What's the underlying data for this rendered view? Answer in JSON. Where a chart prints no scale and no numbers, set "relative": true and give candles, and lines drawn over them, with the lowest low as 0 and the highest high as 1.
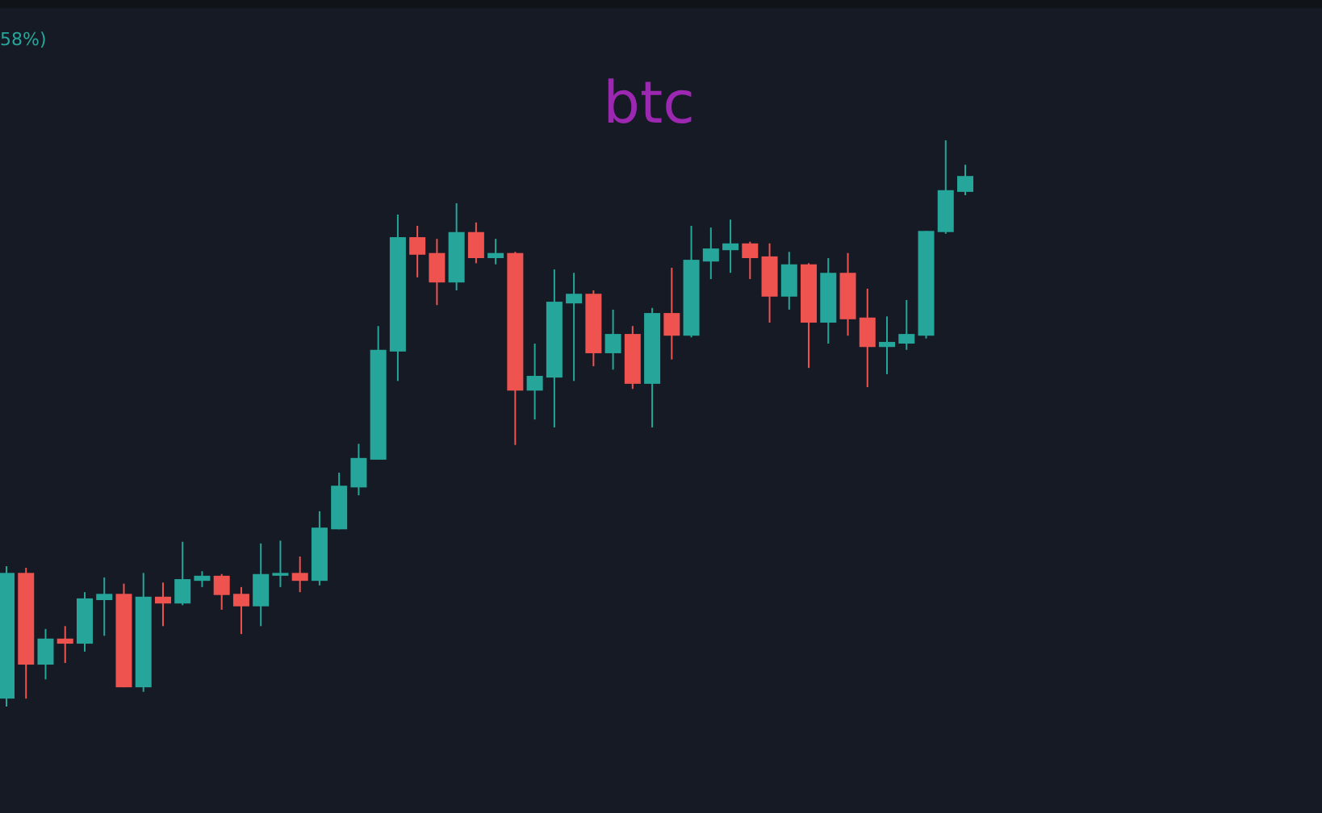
{
  "chart_data": {
    "type": "candlestick",
    "title": "btc",
    "annotations": [
      "58%)"
    ],
    "relative": true,
    "categories": [
      null,
      null,
      null,
      null,
      null,
      null,
      null,
      null,
      null,
      null,
      null,
      null,
      null,
      null,
      null,
      null,
      null,
      null,
      null,
      null,
      null,
      null,
      null,
      null,
      null,
      null,
      null,
      null,
      null,
      null,
      null,
      null,
      null,
      null,
      null,
      null,
      null,
      null,
      null,
      null,
      null,
      null,
      null,
      null,
      null,
      null,
      null,
      null,
      null,
      null
    ],
    "ohlc": [
      [
        0.014,
        0.248,
        0,
        0.236
      ],
      [
        0.236,
        0.245,
        0.014,
        0.074
      ],
      [
        0.074,
        0.137,
        0.048,
        0.12
      ],
      [
        0.12,
        0.142,
        0.077,
        0.111
      ],
      [
        0.111,
        0.202,
        0.097,
        0.191
      ],
      [
        0.188,
        0.228,
        0.125,
        0.199
      ],
      [
        0.199,
        0.217,
        0.034,
        0.034
      ],
      [
        0.034,
        0.236,
        0.026,
        0.194
      ],
      [
        0.194,
        0.219,
        0.142,
        0.182
      ],
      [
        0.182,
        0.291,
        0.179,
        0.225
      ],
      [
        0.222,
        0.239,
        0.211,
        0.231
      ],
      [
        0.231,
        0.234,
        0.171,
        0.197
      ],
      [
        0.199,
        0.211,
        0.128,
        0.177
      ],
      [
        0.177,
        0.288,
        0.142,
        0.234
      ],
      [
        0.231,
        0.293,
        0.211,
        0.236
      ],
      [
        0.236,
        0.265,
        0.202,
        0.222
      ],
      [
        0.222,
        0.345,
        0.214,
        0.316
      ],
      [
        0.313,
        0.413,
        0.313,
        0.39
      ],
      [
        0.387,
        0.464,
        0.373,
        0.439
      ],
      [
        0.436,
        0.672,
        0.436,
        0.63
      ],
      [
        0.627,
        0.869,
        0.575,
        0.829
      ],
      [
        0.829,
        0.849,
        0.758,
        0.798
      ],
      [
        0.801,
        0.826,
        0.709,
        0.749
      ],
      [
        0.749,
        0.889,
        0.735,
        0.838
      ],
      [
        0.838,
        0.855,
        0.783,
        0.792
      ],
      [
        0.792,
        0.826,
        0.781,
        0.801
      ],
      [
        0.801,
        0.803,
        0.462,
        0.558
      ],
      [
        0.558,
        0.641,
        0.507,
        0.584
      ],
      [
        0.581,
        0.772,
        0.493,
        0.715
      ],
      [
        0.712,
        0.766,
        0.575,
        0.729
      ],
      [
        0.729,
        0.735,
        0.601,
        0.624
      ],
      [
        0.624,
        0.701,
        0.595,
        0.658
      ],
      [
        0.658,
        0.672,
        0.561,
        0.57
      ],
      [
        0.57,
        0.704,
        0.493,
        0.695
      ],
      [
        0.695,
        0.775,
        0.613,
        0.655
      ],
      [
        0.655,
        0.849,
        0.652,
        0.789
      ],
      [
        0.786,
        0.846,
        0.755,
        0.809
      ],
      [
        0.806,
        0.86,
        0.766,
        0.818
      ],
      [
        0.818,
        0.821,
        0.755,
        0.792
      ],
      [
        0.795,
        0.818,
        0.678,
        0.724
      ],
      [
        0.724,
        0.803,
        0.701,
        0.781
      ],
      [
        0.781,
        0.783,
        0.598,
        0.678
      ],
      [
        0.678,
        0.792,
        0.641,
        0.766
      ],
      [
        0.766,
        0.801,
        0.655,
        0.684
      ],
      [
        0.687,
        0.738,
        0.564,
        0.635
      ],
      [
        0.635,
        0.689,
        0.587,
        0.644
      ],
      [
        0.641,
        0.718,
        0.63,
        0.658
      ],
      [
        0.655,
        0.84,
        0.65,
        0.84
      ],
      [
        0.838,
        1,
        0.835,
        0.912
      ],
      [
        0.909,
        0.957,
        0.903,
        0.937
      ]
    ],
    "colors": [
      "#26a69a",
      "#ef5350",
      "#26a69a",
      "#ef5350",
      "#26a69a",
      "#26a69a",
      "#ef5350",
      "#26a69a",
      "#ef5350",
      "#26a69a",
      "#26a69a",
      "#ef5350",
      "#ef5350",
      "#26a69a",
      "#26a69a",
      "#ef5350",
      "#26a69a",
      "#26a69a",
      "#26a69a",
      "#26a69a",
      "#26a69a",
      "#ef5350",
      "#ef5350",
      "#26a69a",
      "#ef5350",
      "#26a69a",
      "#ef5350",
      "#26a69a",
      "#26a69a",
      "#26a69a",
      "#ef5350",
      "#26a69a",
      "#ef5350",
      "#26a69a",
      "#ef5350",
      "#26a69a",
      "#26a69a",
      "#26a69a",
      "#ef5350",
      "#ef5350",
      "#26a69a",
      "#ef5350",
      "#26a69a",
      "#ef5350",
      "#ef5350",
      "#26a69a",
      "#26a69a",
      "#26a69a",
      "#26a69a",
      "#26a69a"
    ]
  }
}
